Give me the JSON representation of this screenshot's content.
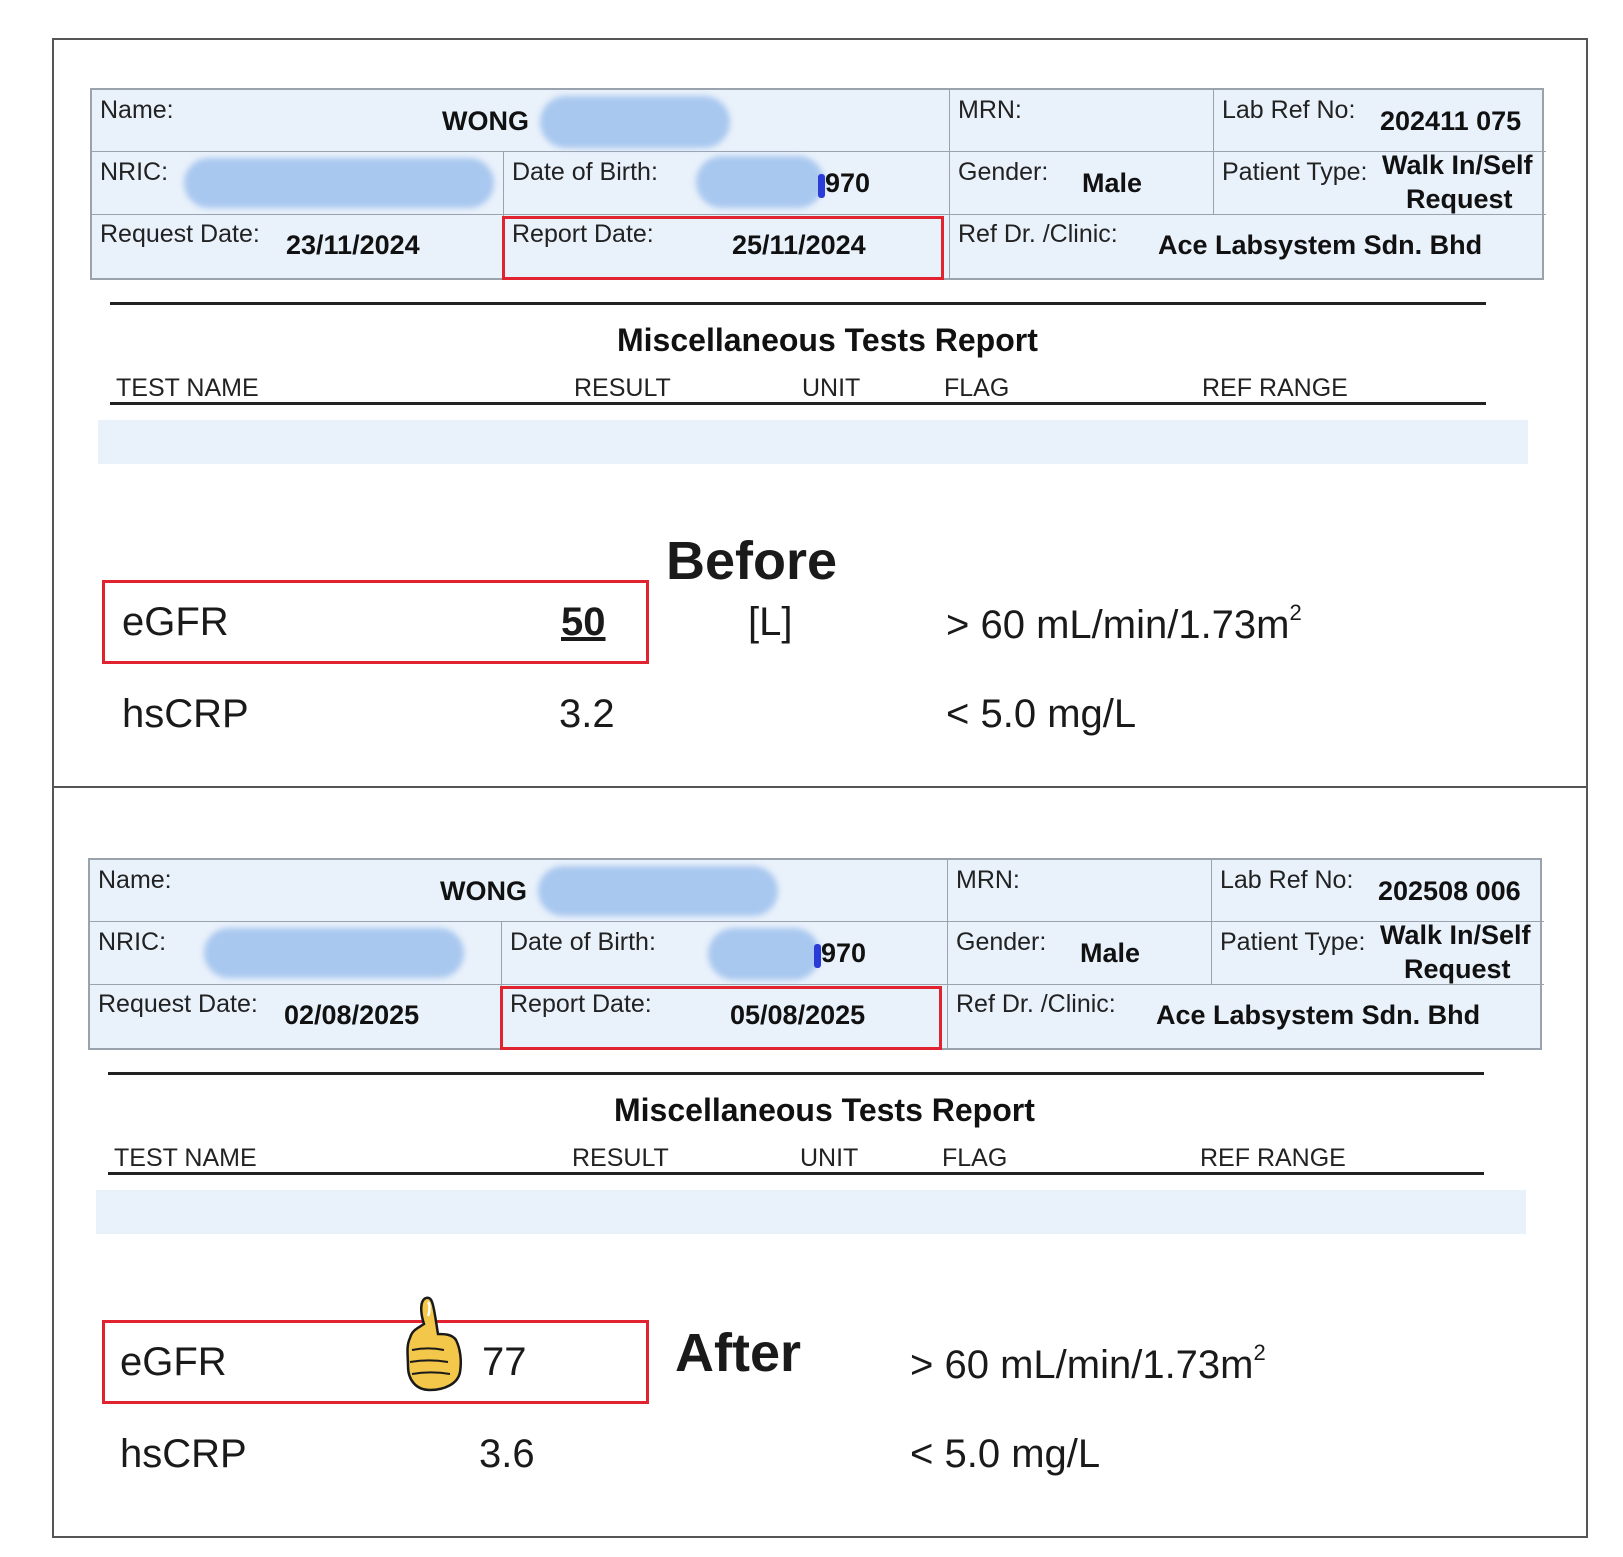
{
  "labels": {
    "name": "Name:",
    "mrn": "MRN:",
    "lab_ref": "Lab Ref No:",
    "nric": "NRIC:",
    "dob": "Date of Birth:",
    "gender": "Gender:",
    "patient_type": "Patient Type:",
    "request_date": "Request Date:",
    "report_date": "Report Date:",
    "ref_dr": "Ref Dr. /Clinic:"
  },
  "columns": {
    "test_name": "TEST NAME",
    "result": "RESULT",
    "unit": "UNIT",
    "flag": "FLAG",
    "ref_range": "REF RANGE"
  },
  "report_title": "Miscellaneous Tests Report",
  "before": {
    "stage": "Before",
    "name": "WONG",
    "lab_ref": "202411 075",
    "dob_suffix": "970",
    "gender": "Male",
    "patient_type_1": "Walk In/Self",
    "patient_type_2": "Request",
    "request_date": "23/11/2024",
    "report_date": "25/11/2024",
    "clinic": "Ace Labsystem Sdn. Bhd",
    "egfr_name": "eGFR",
    "egfr_value": "50",
    "egfr_flag": "[L]",
    "egfr_range": "> 60 mL/min/1.73m",
    "egfr_range_sup": "2",
    "crp_name": "hsCRP",
    "crp_value": "3.2",
    "crp_range": "< 5.0 mg/L"
  },
  "after": {
    "stage": "After",
    "name": "WONG",
    "lab_ref": "202508 006",
    "dob_suffix": "970",
    "gender": "Male",
    "patient_type_1": "Walk In/Self",
    "patient_type_2": "Request",
    "request_date": "02/08/2025",
    "report_date": "05/08/2025",
    "clinic": "Ace Labsystem Sdn. Bhd",
    "egfr_name": "eGFR",
    "egfr_value": "77",
    "egfr_range": "> 60 mL/min/1.73m",
    "egfr_range_sup": "2",
    "crp_name": "hsCRP",
    "crp_value": "3.6",
    "crp_range": "< 5.0 mg/L"
  },
  "colors": {
    "highlight_box": "#e0232e",
    "header_fill": "#e9f1fb",
    "redaction": "#a9c8ef"
  },
  "icons": {
    "thumbs_up": "thumbs-up-icon"
  }
}
